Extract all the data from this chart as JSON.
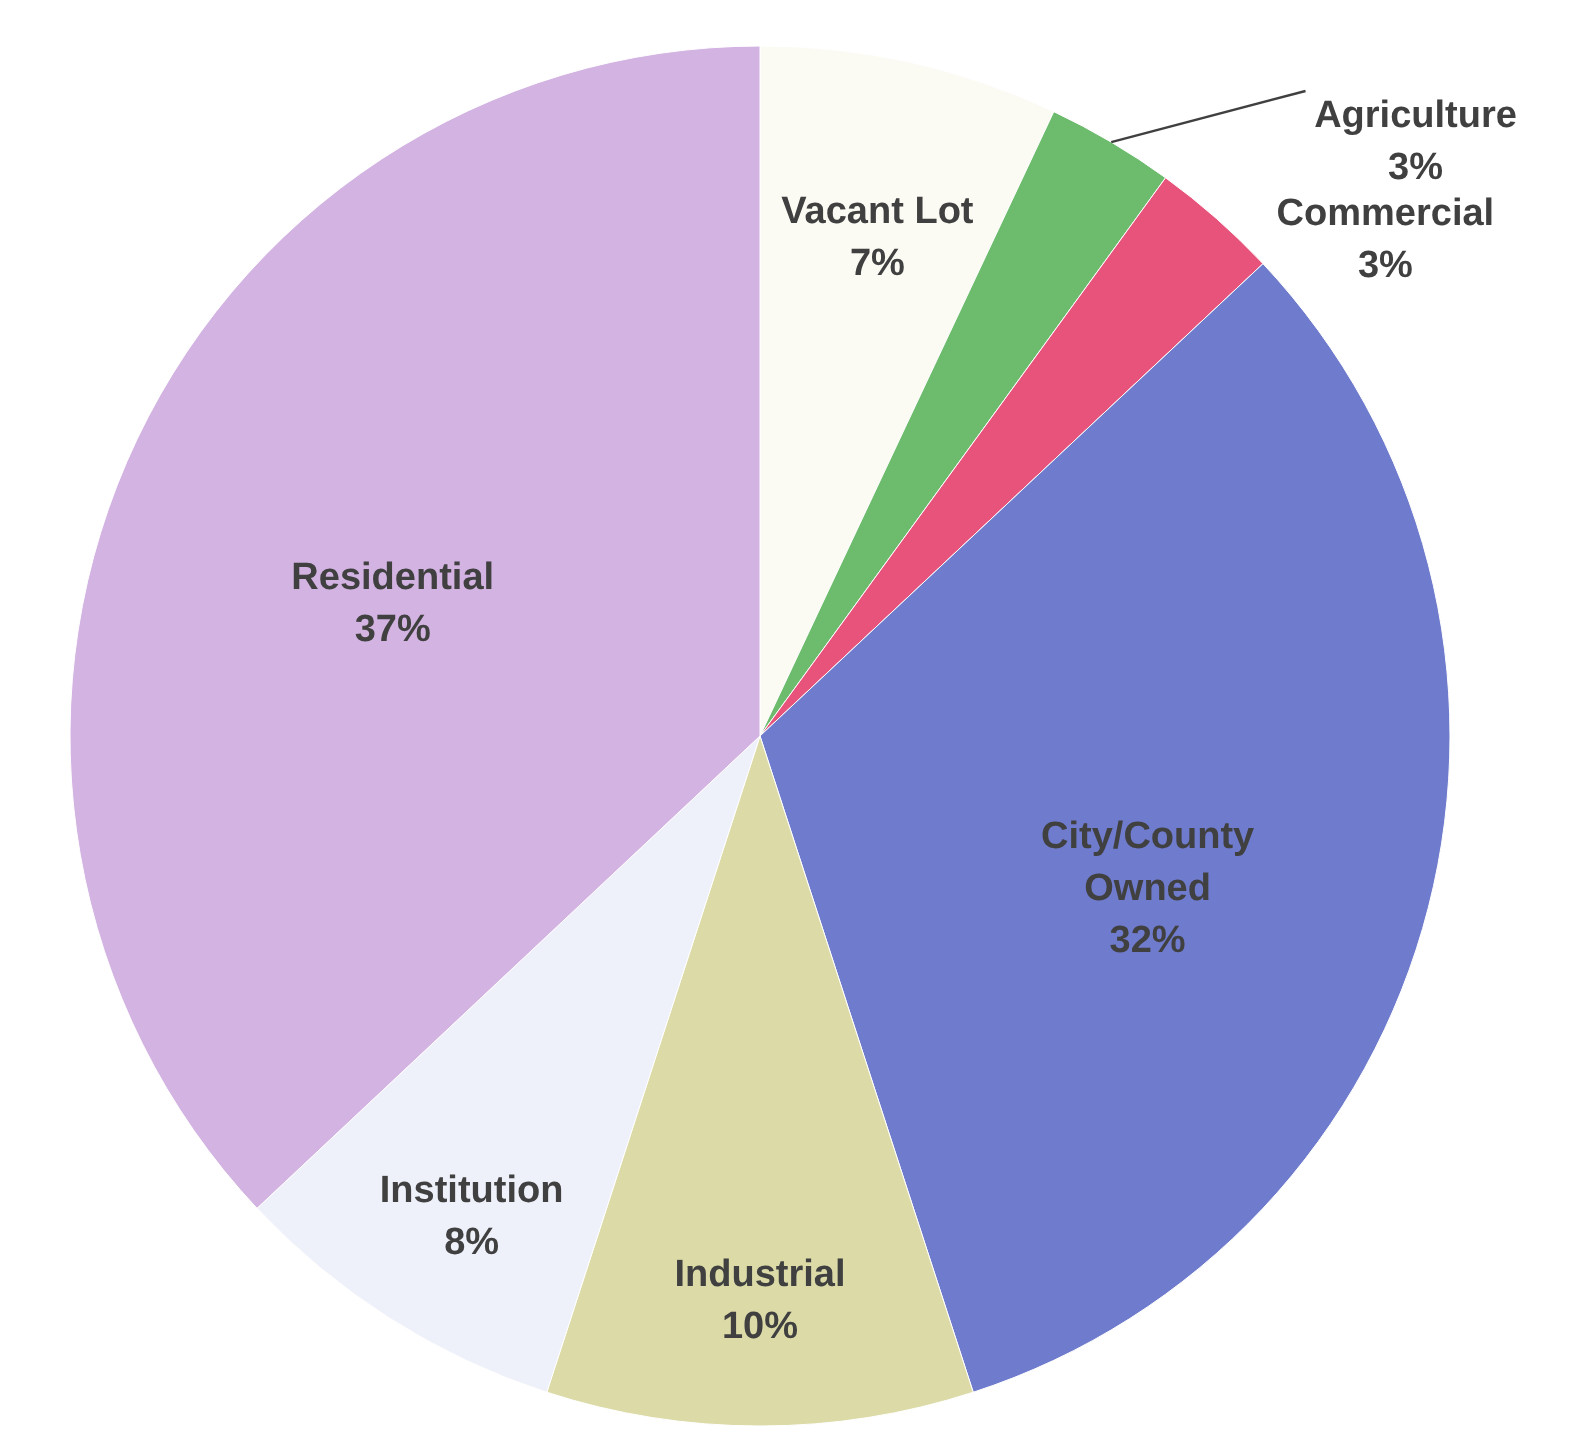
{
  "chart_data": {
    "type": "pie",
    "categories": [
      "Vacant Lot",
      "Agriculture",
      "Commercial",
      "City/County Owned",
      "Industrial",
      "Institution",
      "Residential"
    ],
    "values": [
      7,
      3,
      3,
      32,
      10,
      8,
      37
    ],
    "colors": [
      "#fbfaf3",
      "#6dbb6d",
      "#e8537c",
      "#6f7bcc",
      "#dcdba8",
      "#eef0fa",
      "#d3b3e2"
    ],
    "value_labels": [
      "7%",
      "3%",
      "3%",
      "32%",
      "10%",
      "8%",
      "37%"
    ]
  }
}
